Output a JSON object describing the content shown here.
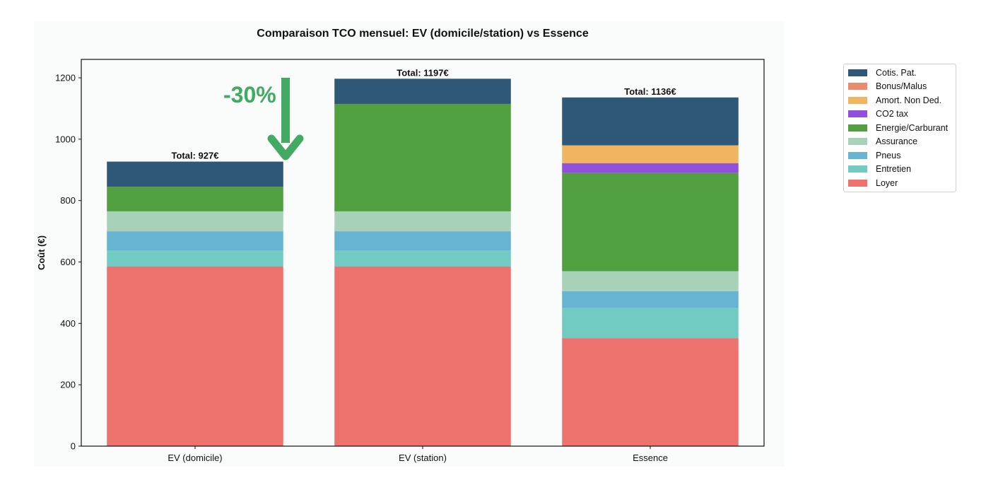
{
  "chart_data": {
    "type": "bar",
    "stacked": true,
    "title": "Comparaison TCO mensuel: EV (domicile/station) vs Essence",
    "xlabel": "",
    "ylabel": "Coût (€)",
    "ylim": [
      0,
      1260
    ],
    "yticks": [
      0,
      200,
      400,
      600,
      800,
      1000,
      1200
    ],
    "categories": [
      "EV (domicile)",
      "EV (station)",
      "Essence"
    ],
    "series": [
      {
        "name": "Loyer",
        "color": "#ed726d",
        "values": [
          585,
          585,
          352
        ]
      },
      {
        "name": "Entretien",
        "color": "#72cbc3",
        "values": [
          53,
          53,
          98
        ]
      },
      {
        "name": "Pneus",
        "color": "#66b4d2",
        "values": [
          62,
          62,
          55
        ]
      },
      {
        "name": "Assurance",
        "color": "#a7d2b8",
        "values": [
          65,
          65,
          65
        ]
      },
      {
        "name": "Energie/Carburant",
        "color": "#519f3e",
        "values": [
          80,
          350,
          320
        ]
      },
      {
        "name": "CO2 tax",
        "color": "#9150dc",
        "values": [
          0,
          0,
          32
        ]
      },
      {
        "name": "Amort. Non Ded.",
        "color": "#f1b55f",
        "values": [
          0,
          0,
          58
        ]
      },
      {
        "name": "Bonus/Malus",
        "color": "#ea8b6e",
        "values": [
          0,
          0,
          0
        ]
      },
      {
        "name": "Cotis. Pat.",
        "color": "#2f5878",
        "values": [
          82,
          82,
          156
        ]
      }
    ],
    "totals": [
      "Total: 927€",
      "Total: 1197€",
      "Total: 1136€"
    ],
    "legend_position": "outside-top-right",
    "legend_order": [
      "Cotis. Pat.",
      "Bonus/Malus",
      "Amort. Non Ded.",
      "CO2 tax",
      "Energie/Carburant",
      "Assurance",
      "Pneus",
      "Entretien",
      "Loyer"
    ],
    "annotation": {
      "text": "-30%",
      "color": "#43aa63"
    }
  }
}
